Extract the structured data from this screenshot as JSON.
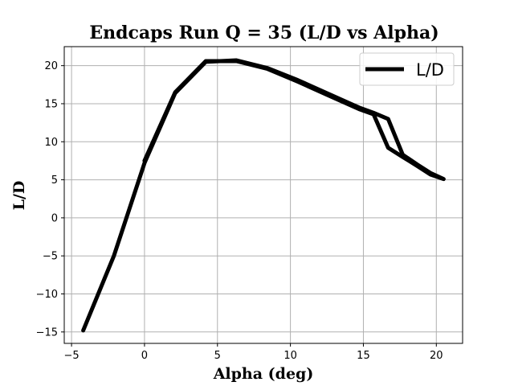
{
  "chart_data": {
    "type": "line",
    "title": "Endcaps Run Q = 35 (L/D vs Alpha)",
    "xlabel": "Alpha (deg)",
    "ylabel": "L/D",
    "xlim": [
      -5.5,
      21.8
    ],
    "ylim": [
      -16.5,
      22.5
    ],
    "xticks": [
      -5,
      0,
      5,
      10,
      15,
      20
    ],
    "yticks": [
      -15,
      -10,
      -5,
      0,
      5,
      10,
      15,
      20
    ],
    "xtick_labels": [
      "−5",
      "0",
      "5",
      "10",
      "15",
      "20"
    ],
    "ytick_labels": [
      "−15",
      "−10",
      "−5",
      "0",
      "5",
      "10",
      "15",
      "20"
    ],
    "grid": true,
    "legend_position": "top-right",
    "series": [
      {
        "name": "L/D",
        "color": "#000000",
        "x": [
          -4.2,
          -2.1,
          0.0,
          2.1,
          4.2,
          6.3,
          8.4,
          10.5,
          12.6,
          14.7,
          15.7,
          16.7,
          17.7,
          18.7,
          19.6,
          20.5,
          19.6,
          18.7,
          17.7,
          16.7,
          15.7,
          14.7,
          12.6,
          10.5,
          8.4,
          6.3,
          4.2,
          2.1,
          0.0
        ],
        "y": [
          -14.8,
          -5.0,
          7.2,
          16.4,
          20.5,
          20.7,
          19.7,
          18.1,
          16.3,
          14.5,
          13.8,
          13.0,
          8.3,
          7.0,
          5.9,
          5.1,
          5.7,
          6.8,
          8.0,
          9.2,
          13.6,
          14.3,
          16.1,
          17.9,
          19.6,
          20.6,
          20.6,
          16.5,
          7.5
        ]
      }
    ]
  }
}
